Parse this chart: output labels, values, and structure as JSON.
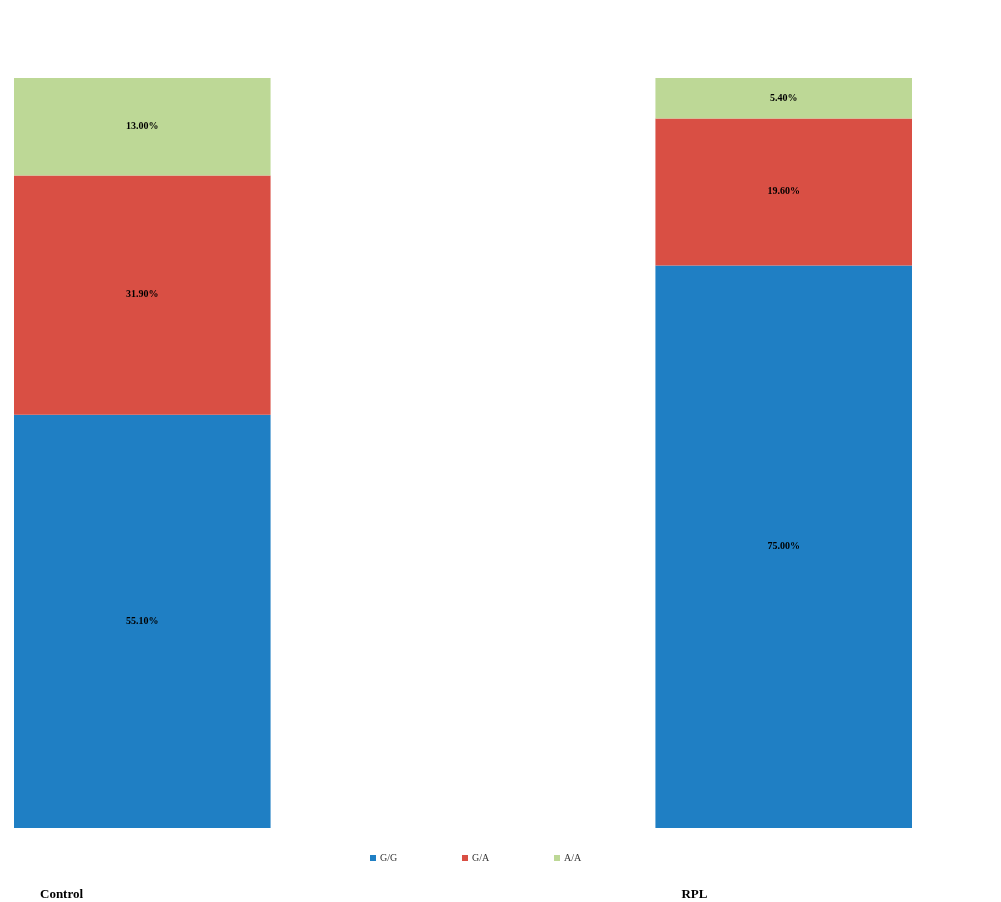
{
  "chart_data": {
    "type": "bar",
    "stacked": true,
    "categories": [
      "Control",
      "RPL"
    ],
    "series": [
      {
        "name": "G/G",
        "color": "#1f7fc4",
        "values": [
          55.1,
          75.0
        ],
        "value_labels": [
          "55.10%",
          "75.00%"
        ]
      },
      {
        "name": "G/A",
        "color": "#d94f44",
        "values": [
          31.9,
          19.6
        ],
        "value_labels": [
          "31.90%",
          "19.60%"
        ]
      },
      {
        "name": "A/A",
        "color": "#bdd896",
        "values": [
          13.0,
          5.4
        ],
        "value_labels": [
          "13.00%",
          "5.40%"
        ]
      }
    ],
    "legend": "bottom"
  }
}
